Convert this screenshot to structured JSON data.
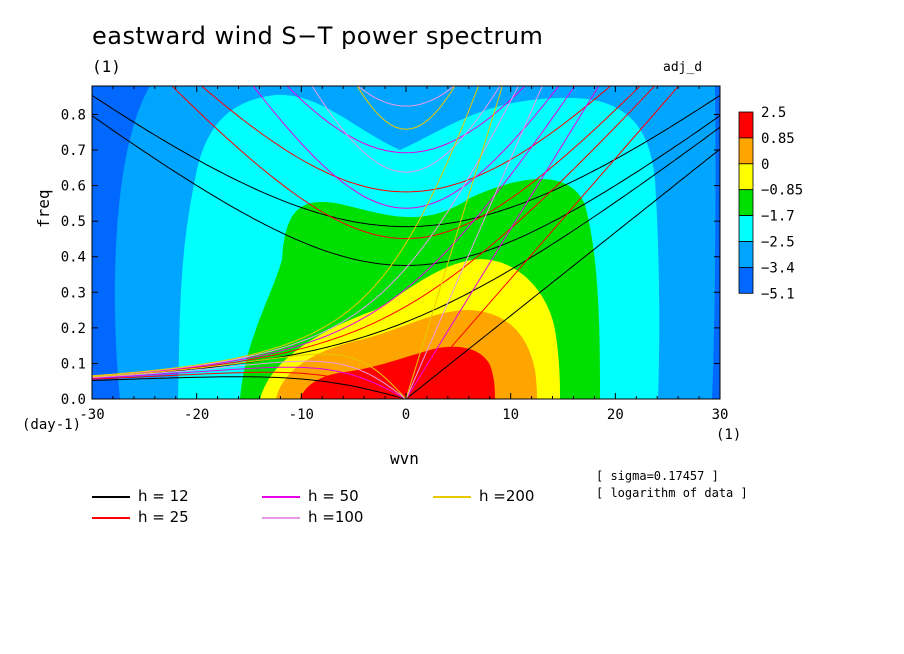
{
  "header": {
    "title": "eastward wind S−T power spectrum",
    "unit_left": "(1)",
    "dataset": "adj_d"
  },
  "notes": [
    "[ sigma=0.17457 ]",
    "[ logarithm of data ]"
  ],
  "chart_data": {
    "type": "heatmap",
    "title": "eastward wind S−T power spectrum",
    "xlabel": "wvn",
    "ylabel": "freq",
    "x_unit": "(1)",
    "y_unit": "(day-1)",
    "xlim": [
      -30,
      30
    ],
    "ylim": [
      0,
      0.88
    ],
    "x_ticks": [
      -30,
      -20,
      -10,
      0,
      10,
      20,
      30
    ],
    "y_ticks": [
      0.0,
      0.1,
      0.2,
      0.3,
      0.4,
      0.5,
      0.6,
      0.7,
      0.8
    ],
    "y_tick_labels": [
      "0.0",
      "0.1",
      "0.2",
      "0.3",
      "0.4",
      "0.5",
      "0.6",
      "0.7",
      "0.8"
    ],
    "colorbar": {
      "levels": [
        "2.5",
        "0.85",
        "0",
        "−0.85",
        "−1.7",
        "−2.5",
        "−3.4",
        "−5.1"
      ],
      "colors": [
        "#ff0000",
        "#ffa500",
        "#ffff00",
        "#00e000",
        "#00ffff",
        "#00a5ff",
        "#0068ff"
      ]
    },
    "dispersion_curves": [
      {
        "label": "h = 12",
        "h": 12,
        "color": "#000000"
      },
      {
        "label": "h = 25",
        "h": 25,
        "color": "#ff0000"
      },
      {
        "label": "h = 50",
        "h": 50,
        "color": "#e800e8"
      },
      {
        "label": "h =100",
        "h": 100,
        "color": "#e89ae8"
      },
      {
        "label": "h =200",
        "h": 200,
        "color": "#e8c800"
      }
    ]
  }
}
